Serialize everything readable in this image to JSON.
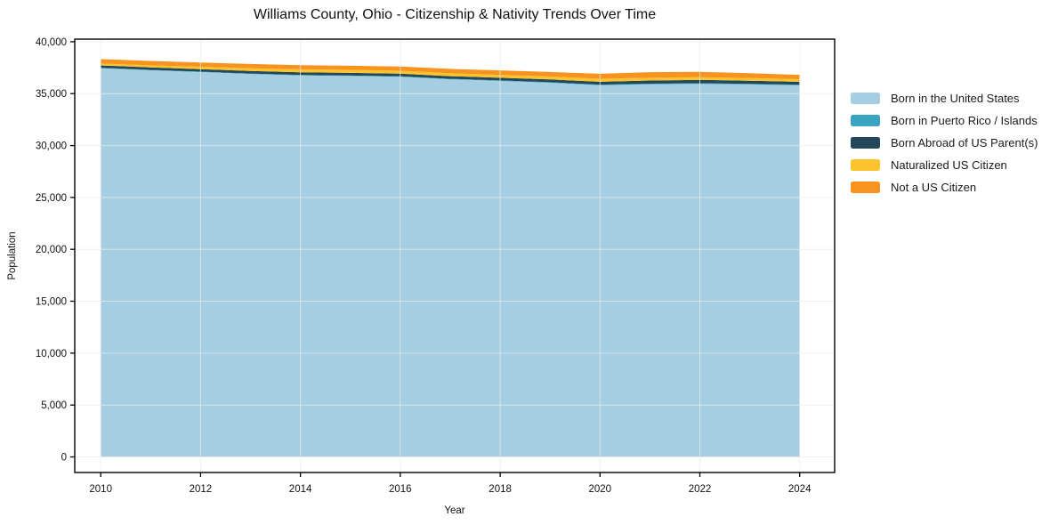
{
  "chart_data": {
    "type": "area",
    "stacked": true,
    "title": "Williams County, Ohio - Citizenship & Nativity Trends Over Time",
    "xlabel": "Year",
    "ylabel": "Population",
    "x": [
      2010,
      2011,
      2012,
      2013,
      2014,
      2015,
      2016,
      2017,
      2018,
      2019,
      2020,
      2021,
      2022,
      2023,
      2024
    ],
    "series": [
      {
        "name": "Born in the United States",
        "color": "#a5cee3",
        "values": [
          37450,
          37250,
          37080,
          36900,
          36760,
          36700,
          36620,
          36380,
          36220,
          36050,
          35810,
          35900,
          35950,
          35890,
          35800
        ]
      },
      {
        "name": "Born in Puerto Rico / Islands",
        "color": "#3aa5c1",
        "values": [
          40,
          40,
          40,
          40,
          45,
          45,
          50,
          50,
          50,
          50,
          55,
          60,
          60,
          60,
          60
        ]
      },
      {
        "name": "Born Abroad of US Parent(s)",
        "color": "#23485a",
        "values": [
          230,
          240,
          245,
          250,
          255,
          255,
          250,
          255,
          260,
          265,
          280,
          300,
          310,
          290,
          280
        ]
      },
      {
        "name": "Naturalized US Citizen",
        "color": "#fcc32d",
        "values": [
          180,
          200,
          230,
          260,
          285,
          290,
          290,
          285,
          280,
          285,
          290,
          270,
          260,
          260,
          255
        ]
      },
      {
        "name": "Not a US Citizen",
        "color": "#f7931e",
        "values": [
          430,
          420,
          410,
          405,
          400,
          395,
          400,
          420,
          430,
          440,
          480,
          540,
          520,
          470,
          420
        ]
      }
    ],
    "xticks": [
      2010,
      2012,
      2014,
      2016,
      2018,
      2020,
      2022,
      2024
    ],
    "yticks": [
      0,
      5000,
      10000,
      15000,
      20000,
      25000,
      30000,
      35000,
      40000
    ],
    "xlim": [
      2009.48,
      2024.7
    ],
    "ylim": [
      -1500,
      40250
    ],
    "grid": true,
    "grid_color": "#eaeaea",
    "axis_color": "#000000",
    "legend_position": "right-outside"
  }
}
